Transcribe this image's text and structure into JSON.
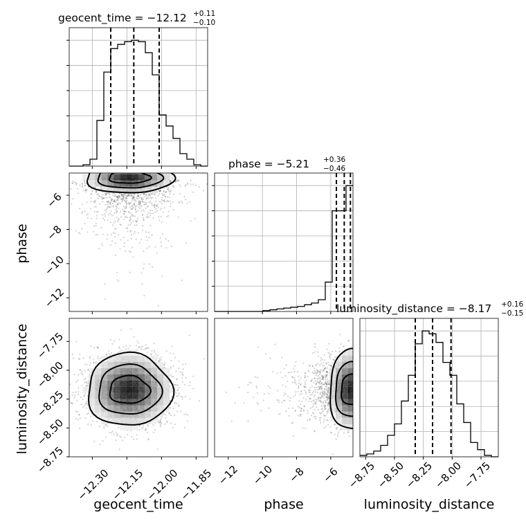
{
  "chart_data": [
    {
      "panel": "hist-geocent_time",
      "type": "histogram",
      "title_param": "geocent_time",
      "title_value": "−12.12",
      "title_plus": "+0.11",
      "title_minus": "−0.10",
      "xlim": [
        -12.4,
        -11.8
      ],
      "quantiles": [
        -12.22,
        -12.12,
        -12.01
      ],
      "bins": [
        -12.4,
        -12.37,
        -12.34,
        -12.31,
        -12.28,
        -12.25,
        -12.22,
        -12.19,
        -12.16,
        -12.13,
        -12.1,
        -12.07,
        -12.04,
        -12.01,
        -11.98,
        -11.95,
        -11.92,
        -11.89,
        -11.86,
        -11.83,
        -11.8
      ],
      "counts": [
        0,
        0,
        1,
        5,
        33,
        68,
        85,
        88,
        90,
        91,
        90,
        82,
        66,
        37,
        29,
        20,
        9,
        5,
        1,
        0
      ]
    },
    {
      "panel": "hist-phase",
      "type": "histogram",
      "title_param": "phase",
      "title_value": "−5.21",
      "title_plus": "+0.36",
      "title_minus": "−0.46",
      "xlim": [
        -12.8,
        -4.7
      ],
      "quantiles": [
        -5.67,
        -5.21,
        -4.85
      ],
      "bins": [
        -12.8,
        -12.395,
        -11.99,
        -11.585,
        -11.18,
        -10.775,
        -10.37,
        -9.965,
        -9.56,
        -9.155,
        -8.75,
        -8.345,
        -7.94,
        -7.535,
        -7.13,
        -6.725,
        -6.32,
        -5.915,
        -5.51,
        -5.105,
        -4.7
      ],
      "counts": [
        0,
        0,
        0,
        0,
        0,
        0,
        0,
        1,
        2,
        3,
        4,
        5,
        6,
        8,
        10,
        14,
        35,
        120,
        120,
        150
      ]
    },
    {
      "panel": "hist-luminosity_distance",
      "type": "histogram",
      "title_param": "luminosity_distance",
      "title_value": "−8.17",
      "title_plus": "+0.16",
      "title_minus": "−0.15",
      "xlim": [
        -8.8,
        -7.6
      ],
      "quantiles": [
        -8.32,
        -8.17,
        -8.01
      ],
      "bins": [
        -8.8,
        -8.74,
        -8.68,
        -8.62,
        -8.56,
        -8.5,
        -8.44,
        -8.38,
        -8.32,
        -8.26,
        -8.2,
        -8.14,
        -8.08,
        -8.02,
        -7.96,
        -7.9,
        -7.84,
        -7.78,
        -7.72,
        -7.66,
        -7.6
      ],
      "counts": [
        1,
        2,
        4,
        8,
        15,
        23,
        39,
        57,
        79,
        88,
        86,
        80,
        66,
        57,
        37,
        24,
        10,
        5,
        1,
        0
      ]
    },
    {
      "panel": "scatter-geocent_time-phase",
      "type": "scatter",
      "x_param": "geocent_time",
      "y_param": "phase",
      "xlim": [
        -12.4,
        -11.8
      ],
      "ylim": [
        -12.8,
        -4.7
      ],
      "x_center": -12.14,
      "y_center": -4.95
    },
    {
      "panel": "scatter-geocent_time-luminosity_distance",
      "type": "scatter",
      "x_param": "geocent_time",
      "y_param": "luminosity_distance",
      "xlim": [
        -12.4,
        -11.8
      ],
      "ylim": [
        -8.75,
        -7.55
      ],
      "x_center": -12.14,
      "y_center": -8.17
    },
    {
      "panel": "scatter-phase-luminosity_distance",
      "type": "scatter",
      "x_param": "phase",
      "y_param": "luminosity_distance",
      "xlim": [
        -12.8,
        -4.7
      ],
      "ylim": [
        -8.75,
        -7.55
      ],
      "x_center": -4.8,
      "y_center": -8.17
    }
  ],
  "axes": {
    "x_labels": [
      "geocent_time",
      "phase",
      "luminosity_distance"
    ],
    "y_labels": [
      "phase",
      "luminosity_distance"
    ],
    "ticks_geocent_time": [
      "−12.30",
      "−12.15",
      "−12.00",
      "−11.85"
    ],
    "ticks_phase": [
      "−12",
      "−10",
      "−8",
      "−6"
    ],
    "ticks_luminosity_distance": [
      "−8.75",
      "−8.50",
      "−8.25",
      "−8.00",
      "−7.75"
    ]
  },
  "text": {
    "eq": " = ",
    "plus_minus_note": ""
  }
}
